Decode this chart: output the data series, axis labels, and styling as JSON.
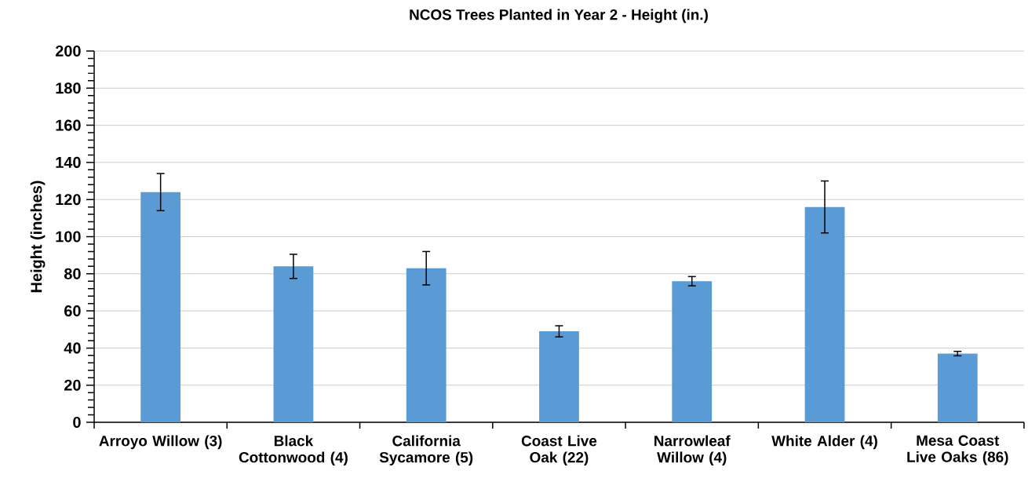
{
  "chart_data": {
    "type": "bar",
    "title": "NCOS Trees Planted in Year 2 - Height (in.)",
    "ylabel": "Height (inches)",
    "categories": [
      "Arroyo Willow (3)",
      "Black Cottonwood (4)",
      "California Sycamore (5)",
      "Coast Live Oak (22)",
      "Narrowleaf Willow (4)",
      "White Alder (4)",
      "Mesa Coast Live Oaks (86)"
    ],
    "values": [
      124,
      84,
      83,
      49,
      76,
      116,
      37
    ],
    "errors": [
      10,
      6.5,
      9,
      3,
      2.5,
      14,
      1.2
    ],
    "color": "#5b9bd5",
    "ylim": [
      0,
      200
    ],
    "yticks": [
      0,
      20,
      40,
      60,
      80,
      100,
      120,
      140,
      160,
      180,
      200
    ],
    "grid": "y"
  }
}
